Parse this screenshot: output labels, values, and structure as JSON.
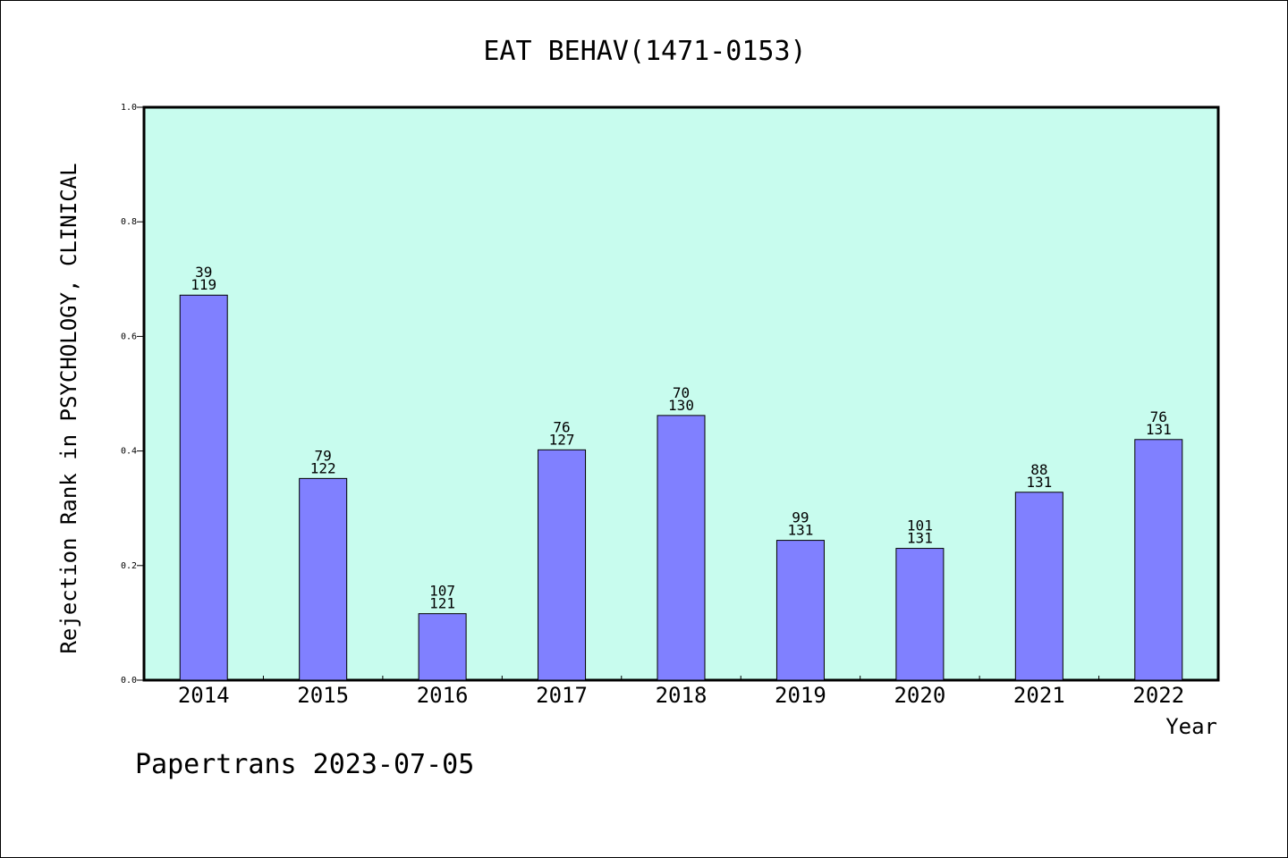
{
  "chart_data": {
    "type": "bar",
    "title": "EAT BEHAV(1471-0153)",
    "xlabel": "Year",
    "ylabel": "Rejection Rank in PSYCHOLOGY, CLINICAL",
    "ylim": [
      0,
      1
    ],
    "yticks": [
      "0.0",
      "0.2",
      "0.4",
      "0.6",
      "0.8",
      "1.0"
    ],
    "categories": [
      "2014",
      "2015",
      "2016",
      "2017",
      "2018",
      "2019",
      "2020",
      "2021",
      "2022"
    ],
    "values": [
      0.672,
      0.352,
      0.116,
      0.402,
      0.462,
      0.244,
      0.23,
      0.328,
      0.42
    ],
    "rank": [
      "39",
      "79",
      "107",
      "76",
      "70",
      "99",
      "101",
      "88",
      "76"
    ],
    "total": [
      "119",
      "122",
      "121",
      "127",
      "130",
      "131",
      "131",
      "131",
      "131"
    ],
    "grid": false,
    "colors": {
      "plot_bg": "#c8fcee",
      "bar": "#8080ff",
      "axis": "#000000"
    }
  },
  "footer": "Papertrans 2023-07-05"
}
